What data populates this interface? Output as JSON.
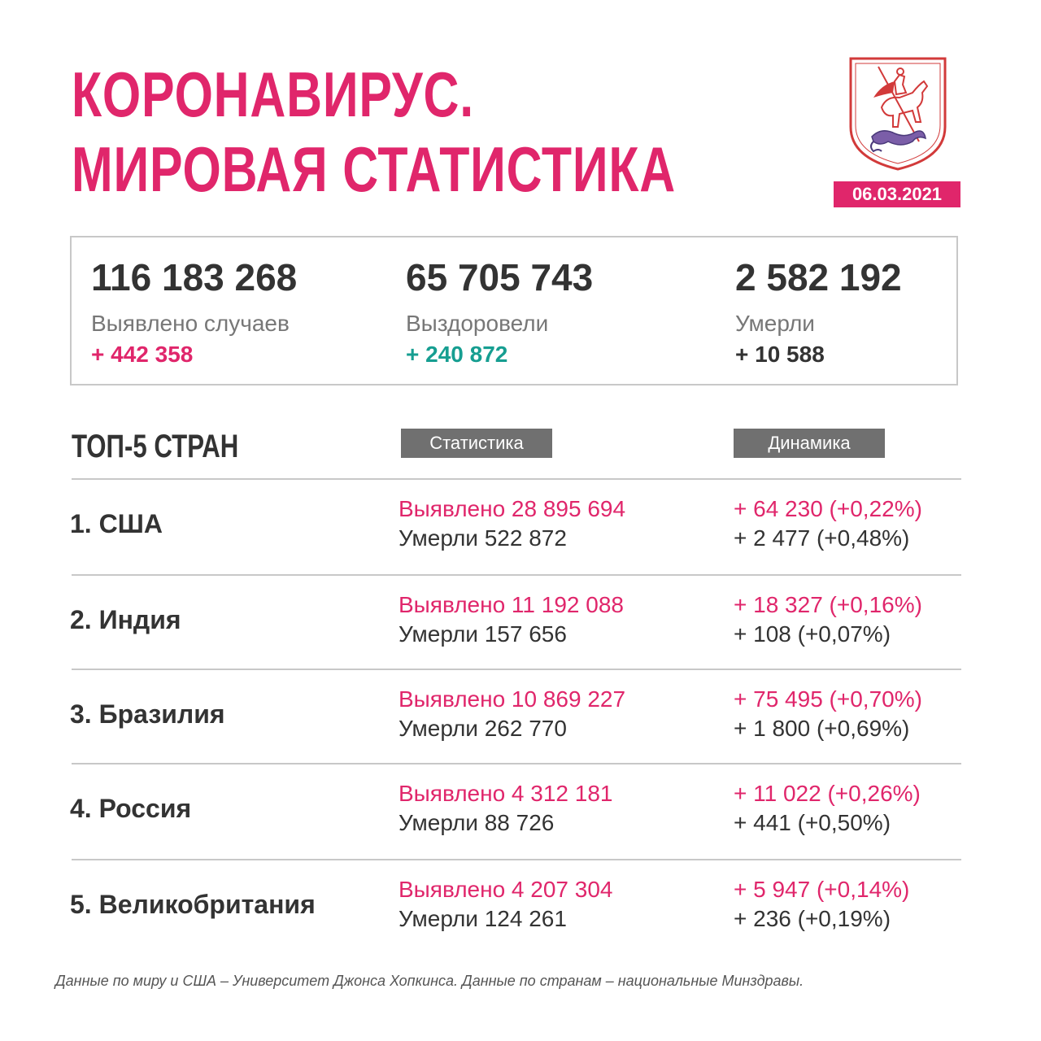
{
  "title": {
    "line1": "КОРОНАВИРУС.",
    "line2": "МИРОВАЯ СТАТИСТИКА"
  },
  "emblem": {
    "icon": "moscow-coat-of-arms-icon"
  },
  "date": "06.03.2021",
  "summary": {
    "cases": {
      "value": "116 183 268",
      "label": "Выявлено случаев",
      "delta": "+ 442 358"
    },
    "recovered": {
      "value": "65 705 743",
      "label": "Выздоровели",
      "delta": "+ 240 872"
    },
    "deaths": {
      "value": "2 582 192",
      "label": "Умерли",
      "delta": "+ 10 588"
    }
  },
  "top": {
    "heading": "ТОП-5 СТРАН",
    "col_stats": "Статистика",
    "col_dynamics": "Динамика",
    "rows": [
      {
        "country": "1. США",
        "cases": "Выявлено 28 895 694",
        "deaths": "Умерли 522 872",
        "cases_delta": "+ 64 230 (+0,22%)",
        "deaths_delta": "+ 2 477 (+0,48%)"
      },
      {
        "country": "2. Индия",
        "cases": "Выявлено 11 192 088",
        "deaths": "Умерли 157 656",
        "cases_delta": "+ 18 327 (+0,16%)",
        "deaths_delta": "+ 108 (+0,07%)"
      },
      {
        "country": "3. Бразилия",
        "cases": "Выявлено 10 869 227",
        "deaths": "Умерли 262 770",
        "cases_delta": "+ 75 495 (+0,70%)",
        "deaths_delta": "+ 1 800 (+0,69%)"
      },
      {
        "country": "4. Россия",
        "cases": "Выявлено 4 312 181",
        "deaths": "Умерли 88 726",
        "cases_delta": "+ 11 022 (+0,26%)",
        "deaths_delta": "+ 441 (+0,50%)"
      },
      {
        "country": "5. Великобритания",
        "cases": "Выявлено 4 207 304",
        "deaths": "Умерли 124 261",
        "cases_delta": "+ 5 947 (+0,14%)",
        "deaths_delta": "+ 236 (+0,19%)"
      }
    ]
  },
  "footer": "Данные по миру и США – Университет Джонса Хопкинса. Данные по странам – национальные Минздравы.",
  "colors": {
    "accent": "#e0266b",
    "teal": "#169e91",
    "text": "#333333",
    "tag": "#707070",
    "border": "#c8c8c8"
  }
}
